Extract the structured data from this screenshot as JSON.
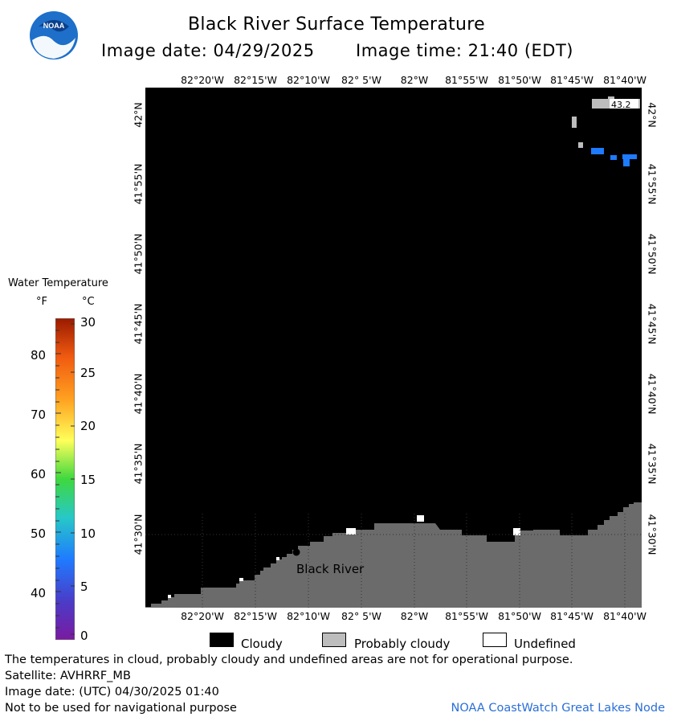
{
  "header": {
    "title": "Black River Surface Temperature",
    "image_date": "Image date: 04/29/2025",
    "image_time": "Image time: 21:40 (EDT)",
    "logo_text": "NOAA"
  },
  "map": {
    "lon_labels": [
      "82°20'W",
      "82°15'W",
      "82°10'W",
      "82° 5'W",
      "82°W",
      "81°55'W",
      "81°50'W",
      "81°45'W",
      "81°40'W"
    ],
    "lat_labels": [
      "42°N",
      "41°55'N",
      "41°50'N",
      "41°45'N",
      "41°40'N",
      "41°35'N",
      "41°30'N"
    ],
    "place_label": "Black River",
    "sst_label": "43.2",
    "colors": {
      "cloud": "#000000",
      "land": "#6b6b6b",
      "water_cold": "#1e7bff",
      "probably_cloudy": "#bdbdbd",
      "undefined": "#ffffff"
    }
  },
  "legend": {
    "title": "Water Temperature",
    "unit_f": "°F",
    "unit_c": "°C",
    "f_ticks": [
      "80",
      "70",
      "60",
      "50",
      "40"
    ],
    "c_ticks": [
      "30",
      "25",
      "20",
      "15",
      "10",
      "5",
      "0"
    ]
  },
  "key": {
    "cloudy": "Cloudy",
    "probably_cloudy": "Probably cloudy",
    "undefined": "Undefined"
  },
  "footer": {
    "disclaimer": "The temperatures in cloud, probably cloudy and undefined areas are not for operational purpose.",
    "satellite": "Satellite: AVHRRF_MB",
    "utc_date": "Image date: (UTC) 04/30/2025  01:40",
    "nav_warning": "Not to be used for navigational purpose",
    "credit": "NOAA CoastWatch Great Lakes Node"
  }
}
